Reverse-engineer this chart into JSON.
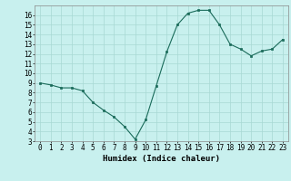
{
  "x": [
    0,
    1,
    2,
    3,
    4,
    5,
    6,
    7,
    8,
    9,
    10,
    11,
    12,
    13,
    14,
    15,
    16,
    17,
    18,
    19,
    20,
    21,
    22,
    23
  ],
  "y": [
    9.0,
    8.8,
    8.5,
    8.5,
    8.2,
    7.0,
    6.2,
    5.5,
    4.5,
    3.2,
    5.2,
    8.7,
    12.2,
    15.0,
    16.2,
    16.5,
    16.5,
    15.0,
    13.0,
    12.5,
    11.8,
    12.3,
    12.5,
    13.5
  ],
  "xlabel": "Humidex (Indice chaleur)",
  "ylim": [
    3,
    17
  ],
  "xlim": [
    -0.5,
    23.5
  ],
  "yticks": [
    3,
    4,
    5,
    6,
    7,
    8,
    9,
    10,
    11,
    12,
    13,
    14,
    15,
    16
  ],
  "xticks": [
    0,
    1,
    2,
    3,
    4,
    5,
    6,
    7,
    8,
    9,
    10,
    11,
    12,
    13,
    14,
    15,
    16,
    17,
    18,
    19,
    20,
    21,
    22,
    23
  ],
  "line_color": "#1a6b5a",
  "marker_color": "#1a6b5a",
  "bg_color": "#c8f0ee",
  "grid_color": "#a8d8d4",
  "xlabel_fontsize": 6.5,
  "tick_fontsize": 5.5
}
